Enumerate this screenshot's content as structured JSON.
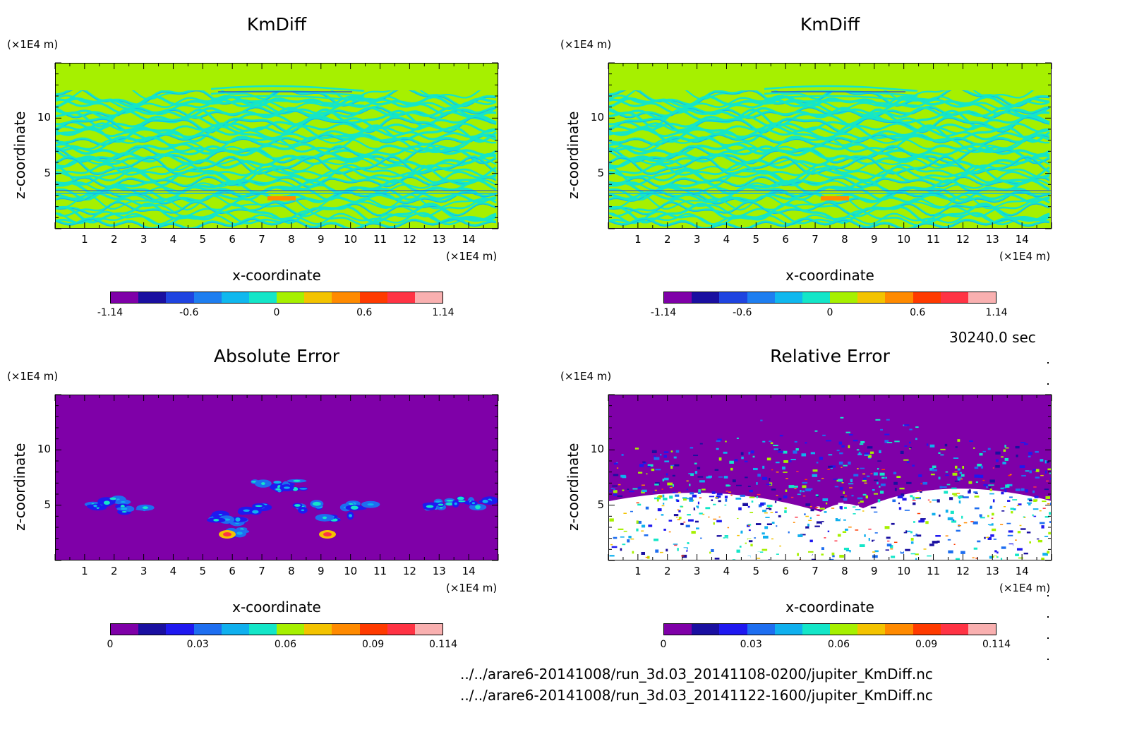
{
  "timestamp": "30240.0 sec",
  "footer": {
    "line1": "../../arare6-20141008/run_3d.03_20141108-0200/jupiter_KmDiff.nc",
    "line2": "../../arare6-20141008/run_3d.03_20141122-1600/jupiter_KmDiff.nc"
  },
  "colors": {
    "kmdiff_palette": [
      "#7f00a8",
      "#1a0fa0",
      "#1f44e0",
      "#1e7ef0",
      "#10b8ee",
      "#14e6c8",
      "#a6f000",
      "#f3c300",
      "#ff8a00",
      "#ff3a00",
      "#ff3344",
      "#f9b0b0"
    ],
    "error_palette": [
      "#7f00a8",
      "#1a0fa0",
      "#1f18f0",
      "#1e6ef0",
      "#10b0ee",
      "#14e6c8",
      "#a6f000",
      "#f3c300",
      "#ff8a00",
      "#ff3a00",
      "#ff3344",
      "#f9b0b0"
    ],
    "relative_extra": "#ffffff"
  },
  "chart_data": [
    {
      "type": "heatmap",
      "title": "KmDiff",
      "xlabel": "x-coordinate",
      "ylabel": "z-coordinate",
      "x_unit": "(×1E4 m)",
      "y_unit": "(×1E4 m)",
      "xlim": [
        0,
        15
      ],
      "ylim": [
        0,
        15
      ],
      "x_ticks": [
        "1",
        "2",
        "3",
        "4",
        "5",
        "6",
        "7",
        "8",
        "9",
        "10",
        "11",
        "12",
        "13",
        "14"
      ],
      "y_ticks": [
        "5",
        "10"
      ],
      "colorbar": {
        "min": -1.14,
        "max": 1.14,
        "ticks": [
          "-1.14",
          "-0.6",
          "0",
          "0.6",
          "1.14"
        ],
        "tick_values": [
          -1.14,
          -0.6,
          0,
          0.6,
          1.14
        ]
      },
      "pattern": "kmdiff"
    },
    {
      "type": "heatmap",
      "title": "KmDiff",
      "xlabel": "x-coordinate",
      "ylabel": "z-coordinate",
      "x_unit": "(×1E4 m)",
      "y_unit": "(×1E4 m)",
      "xlim": [
        0,
        15
      ],
      "ylim": [
        0,
        15
      ],
      "x_ticks": [
        "1",
        "2",
        "3",
        "4",
        "5",
        "6",
        "7",
        "8",
        "9",
        "10",
        "11",
        "12",
        "13",
        "14"
      ],
      "y_ticks": [
        "5",
        "10"
      ],
      "colorbar": {
        "min": -1.14,
        "max": 1.14,
        "ticks": [
          "-1.14",
          "-0.6",
          "0",
          "0.6",
          "1.14"
        ],
        "tick_values": [
          -1.14,
          -0.6,
          0,
          0.6,
          1.14
        ]
      },
      "pattern": "kmdiff"
    },
    {
      "type": "heatmap",
      "title": "Absolute Error",
      "xlabel": "x-coordinate",
      "ylabel": "z-coordinate",
      "x_unit": "(×1E4 m)",
      "y_unit": "(×1E4 m)",
      "xlim": [
        0,
        15
      ],
      "ylim": [
        0,
        15
      ],
      "x_ticks": [
        "1",
        "2",
        "3",
        "4",
        "5",
        "6",
        "7",
        "8",
        "9",
        "10",
        "11",
        "12",
        "13",
        "14"
      ],
      "y_ticks": [
        "5",
        "10"
      ],
      "colorbar": {
        "min": 0,
        "max": 0.114,
        "ticks": [
          "0",
          "0.03",
          "0.06",
          "0.09",
          "0.114"
        ],
        "tick_values": [
          0,
          0.03,
          0.06,
          0.09,
          0.114
        ]
      },
      "pattern": "absolute"
    },
    {
      "type": "heatmap",
      "title": "Relative Error",
      "xlabel": "x-coordinate",
      "ylabel": "z-coordinate",
      "x_unit": "(×1E4 m)",
      "y_unit": "(×1E4 m)",
      "xlim": [
        0,
        15
      ],
      "ylim": [
        0,
        15
      ],
      "x_ticks": [
        "1",
        "2",
        "3",
        "4",
        "5",
        "6",
        "7",
        "8",
        "9",
        "10",
        "11",
        "12",
        "13",
        "14"
      ],
      "y_ticks": [
        "5",
        "10"
      ],
      "colorbar": {
        "min": 0,
        "max": 0.114,
        "ticks": [
          "0",
          "0.03",
          "0.06",
          "0.09",
          "0.114"
        ],
        "tick_values": [
          0,
          0.03,
          0.06,
          0.09,
          0.114
        ]
      },
      "pattern": "relative"
    }
  ]
}
